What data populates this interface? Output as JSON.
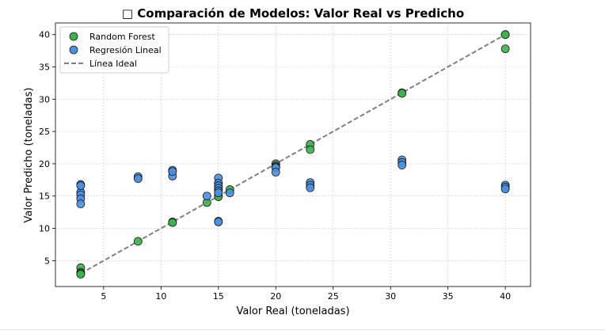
{
  "chart_data": {
    "type": "scatter",
    "title": "□ Comparación de Modelos: Valor Real vs Predicho",
    "xlabel": "Valor Real (toneladas)",
    "ylabel": "Valor Predicho (toneladas)",
    "xlim": [
      0.8,
      42.2
    ],
    "ylim": [
      1.0,
      41.8
    ],
    "xticks": [
      5,
      10,
      15,
      20,
      25,
      30,
      35,
      40
    ],
    "yticks": [
      5,
      10,
      15,
      20,
      25,
      30,
      35,
      40
    ],
    "grid": true,
    "legend_position": "upper-left",
    "series": [
      {
        "name": "Random Forest",
        "color": "#3cb34a",
        "x": [
          3,
          3,
          3,
          3,
          8,
          11,
          11,
          14,
          15,
          15,
          15,
          15,
          15,
          16,
          20,
          20,
          20,
          23,
          23,
          31,
          31,
          40,
          40,
          40
        ],
        "y": [
          3.9,
          3.2,
          3.0,
          2.9,
          8.0,
          11.0,
          10.9,
          14.0,
          15.0,
          14.9,
          16.0,
          16.5,
          17.0,
          16.0,
          20.0,
          19.7,
          19.5,
          23.0,
          22.2,
          31.0,
          30.9,
          40.0,
          40.0,
          37.8
        ]
      },
      {
        "name": "Regresión Lineal",
        "color": "#4a90e2",
        "x": [
          3,
          3,
          3,
          3,
          3,
          3,
          8,
          8,
          11,
          11,
          11,
          14,
          15,
          15,
          15,
          15,
          15,
          15,
          15,
          15,
          16,
          20,
          20,
          20,
          23,
          23,
          23,
          31,
          31,
          31,
          40,
          40,
          40
        ],
        "y": [
          16.8,
          15.6,
          15.2,
          14.6,
          13.8,
          16.6,
          18.0,
          17.7,
          19.0,
          18.1,
          18.8,
          15.0,
          17.8,
          17.0,
          16.6,
          16.2,
          15.8,
          11.1,
          11.0,
          15.5,
          15.5,
          19.5,
          19.4,
          18.7,
          17.1,
          16.7,
          16.3,
          20.6,
          20.2,
          19.8,
          16.7,
          16.4,
          16.1
        ]
      }
    ],
    "reference_line": {
      "name": "Línea Ideal",
      "color": "#808080",
      "x": [
        3,
        40
      ],
      "y": [
        3,
        40
      ]
    }
  }
}
